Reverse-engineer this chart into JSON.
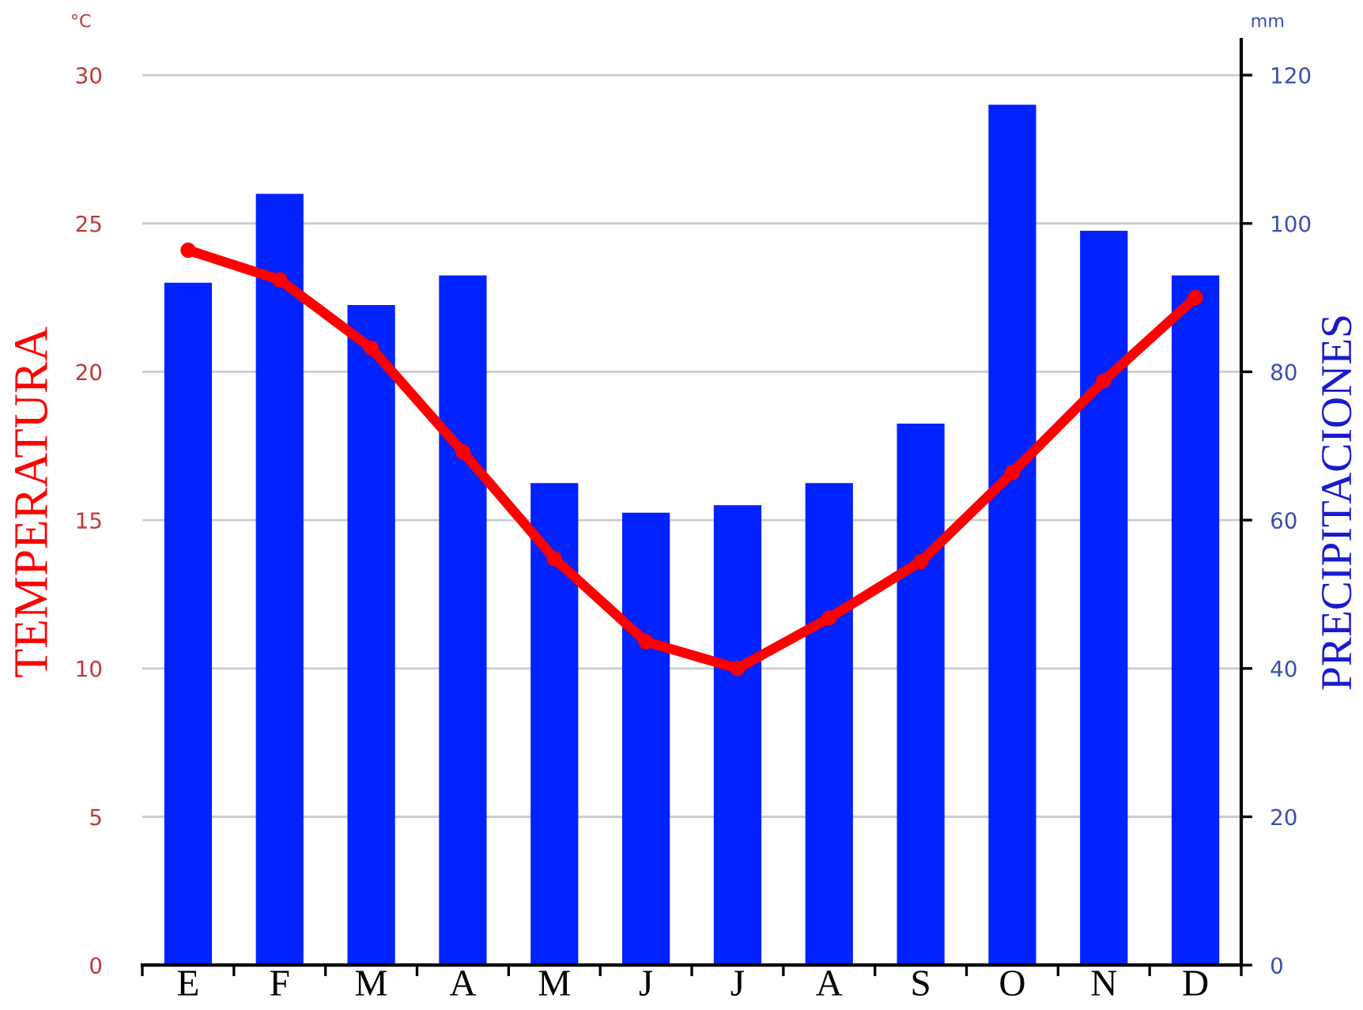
{
  "chart_data": {
    "type": "bar",
    "categories": [
      "E",
      "F",
      "M",
      "A",
      "M",
      "J",
      "J",
      "A",
      "S",
      "O",
      "N",
      "D"
    ],
    "series": [
      {
        "axis": "y2",
        "color": "#0022ff",
        "values": [
          92,
          104,
          89,
          93,
          65,
          61,
          62,
          65,
          73,
          116,
          99,
          93
        ]
      },
      {
        "type": "line",
        "axis": "y",
        "color": "#ff0000",
        "marker": "circle",
        "line_style": "solid",
        "values": [
          24.1,
          23.1,
          20.8,
          17.3,
          13.7,
          10.9,
          10.0,
          11.7,
          13.6,
          16.6,
          19.7,
          22.5
        ]
      }
    ],
    "ylabel": "TEMPERATURA",
    "y2label": "PRECIPITACIONES",
    "ylim": [
      0,
      31.2
    ],
    "yticks": [
      0,
      5,
      10,
      15,
      20,
      25,
      30
    ],
    "y2lim": [
      0,
      124.8
    ],
    "y2ticks": [
      0,
      20,
      40,
      60,
      80,
      100,
      120
    ],
    "grid": "y",
    "annotations": [
      "°C",
      "mm"
    ]
  }
}
